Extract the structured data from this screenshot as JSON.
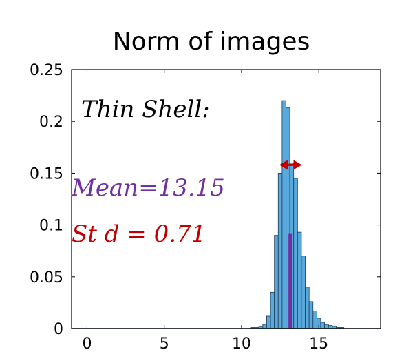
{
  "chart_data": {
    "type": "bar",
    "title": "Norm of images",
    "xlabel": "",
    "ylabel": "",
    "xlim": [
      -1,
      19
    ],
    "ylim": [
      0,
      0.25
    ],
    "xticks": [
      "0",
      "5",
      "10",
      "15"
    ],
    "yticks": [
      "0",
      "0.05",
      "0.1",
      "0.15",
      "0.2",
      "0.25"
    ],
    "bin_width": 0.25,
    "bins": [
      {
        "x": 10.75,
        "y": 0.001
      },
      {
        "x": 11.0,
        "y": 0.001
      },
      {
        "x": 11.25,
        "y": 0.002
      },
      {
        "x": 11.5,
        "y": 0.004
      },
      {
        "x": 11.75,
        "y": 0.012
      },
      {
        "x": 12.0,
        "y": 0.035
      },
      {
        "x": 12.25,
        "y": 0.09
      },
      {
        "x": 12.5,
        "y": 0.15
      },
      {
        "x": 12.75,
        "y": 0.22
      },
      {
        "x": 13.0,
        "y": 0.213
      },
      {
        "x": 13.25,
        "y": 0.16
      },
      {
        "x": 13.5,
        "y": 0.145
      },
      {
        "x": 13.75,
        "y": 0.093
      },
      {
        "x": 14.0,
        "y": 0.07
      },
      {
        "x": 14.25,
        "y": 0.04
      },
      {
        "x": 14.5,
        "y": 0.026
      },
      {
        "x": 14.75,
        "y": 0.017
      },
      {
        "x": 15.0,
        "y": 0.01
      },
      {
        "x": 15.25,
        "y": 0.006
      },
      {
        "x": 15.5,
        "y": 0.004
      },
      {
        "x": 15.75,
        "y": 0.003
      },
      {
        "x": 16.0,
        "y": 0.002
      },
      {
        "x": 16.25,
        "y": 0.001
      },
      {
        "x": 16.5,
        "y": 0.001
      }
    ],
    "mean_marker": {
      "x": 13.15,
      "y": 0.092,
      "color": "#7030a0"
    },
    "spread_arrow": {
      "x_left": 12.45,
      "x_right": 13.9,
      "y": 0.158,
      "color": "#c00000"
    },
    "bar_fill": "#5aa9dd",
    "bar_edge": "#1f3a55",
    "annotations": [
      {
        "text": "Thin Shell:",
        "color": "#000000"
      },
      {
        "text": "Mean=13.15",
        "color": "#7030a0"
      },
      {
        "text": "St d = 0.71",
        "color": "#c00000"
      }
    ]
  }
}
